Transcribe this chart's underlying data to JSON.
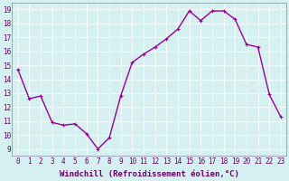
{
  "x": [
    0,
    1,
    2,
    3,
    4,
    5,
    6,
    7,
    8,
    9,
    10,
    11,
    12,
    13,
    14,
    15,
    16,
    17,
    18,
    19,
    20,
    21,
    22,
    23
  ],
  "y": [
    14.7,
    12.6,
    12.8,
    10.9,
    10.7,
    10.8,
    10.1,
    9.0,
    9.8,
    12.8,
    15.2,
    15.8,
    16.3,
    16.9,
    17.6,
    18.9,
    18.2,
    18.9,
    18.9,
    18.3,
    16.5,
    16.3,
    12.9,
    11.3
  ],
  "line_color": "#990099",
  "marker": "+",
  "marker_size": 3,
  "xlabel": "Windchill (Refroidissement éolien,°C)",
  "xlabel_fontsize": 6.5,
  "yticks": [
    9,
    10,
    11,
    12,
    13,
    14,
    15,
    16,
    17,
    18,
    19
  ],
  "xticks": [
    0,
    1,
    2,
    3,
    4,
    5,
    6,
    7,
    8,
    9,
    10,
    11,
    12,
    13,
    14,
    15,
    16,
    17,
    18,
    19,
    20,
    21,
    22,
    23
  ],
  "ylim": [
    8.5,
    19.5
  ],
  "xlim": [
    -0.5,
    23.5
  ],
  "bg_color": "#d4f0f0",
  "grid_color": "#b0d8d8",
  "tick_fontsize": 5.5,
  "line_width": 1.0,
  "fig_width": 3.2,
  "fig_height": 2.0,
  "dpi": 100
}
